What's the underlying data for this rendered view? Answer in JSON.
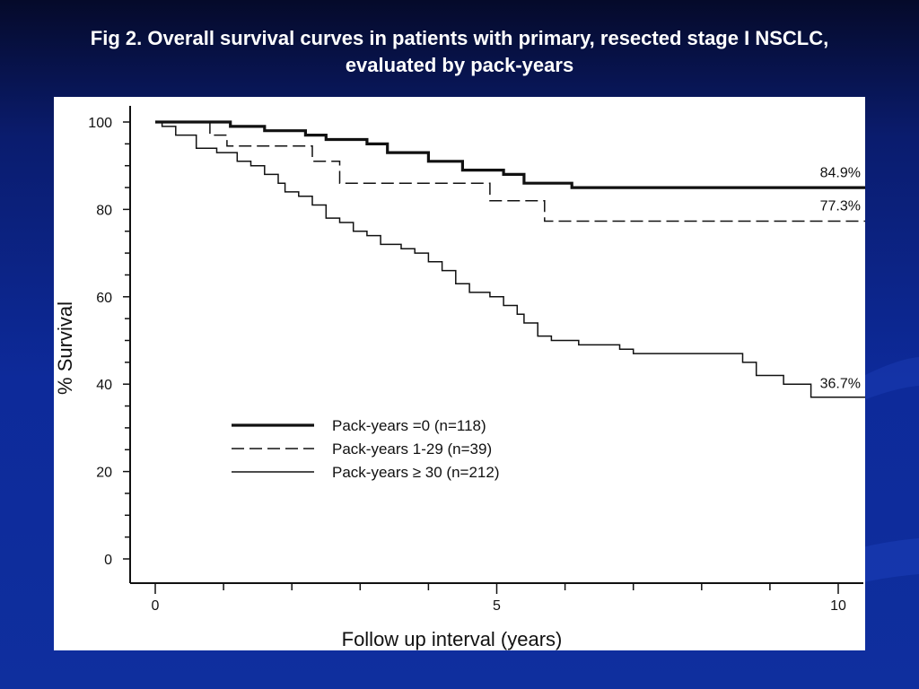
{
  "slide": {
    "title_line1": "Fig 2. Overall survival curves in patients with primary, resected stage I NSCLC,",
    "title_line2": "evaluated by pack-years",
    "background_color": "#0d2a9a",
    "title_color": "#ffffff"
  },
  "chart_data": {
    "type": "line",
    "step": true,
    "xlabel": "Follow up interval (years)",
    "ylabel": "% Survival",
    "xlim": [
      0,
      10.5
    ],
    "ylim": [
      -3,
      105
    ],
    "x_ticks": [
      0,
      5,
      10
    ],
    "x_tick_labels": [
      "0",
      "5",
      "10"
    ],
    "y_ticks": [
      0,
      20,
      40,
      60,
      80,
      100
    ],
    "y_tick_labels": [
      "0",
      "20",
      "40",
      "60",
      "80",
      "100"
    ],
    "grid": false,
    "legend_position": "lower-left",
    "series": [
      {
        "name": "Pack-years =0 (n=118)",
        "style": "thick-solid",
        "end_label": "84.9%",
        "points": [
          [
            0,
            100
          ],
          [
            1.1,
            99
          ],
          [
            1.6,
            98
          ],
          [
            2.2,
            97
          ],
          [
            2.5,
            96
          ],
          [
            3.1,
            95
          ],
          [
            3.4,
            93
          ],
          [
            4.0,
            91
          ],
          [
            4.5,
            89
          ],
          [
            5.1,
            88
          ],
          [
            5.4,
            86
          ],
          [
            6.1,
            85
          ],
          [
            10.5,
            84.9
          ]
        ]
      },
      {
        "name": "Pack-years  1-29 (n=39)",
        "style": "dashed",
        "end_label": "77.3%",
        "points": [
          [
            0,
            100
          ],
          [
            0.8,
            97
          ],
          [
            1.05,
            94.5
          ],
          [
            2.3,
            91
          ],
          [
            2.7,
            86
          ],
          [
            4.9,
            82
          ],
          [
            5.7,
            77.3
          ],
          [
            10.5,
            77.3
          ]
        ]
      },
      {
        "name": "Pack-years ≥ 30 (n=212)",
        "style": "thin-solid",
        "end_label": "36.7%",
        "points": [
          [
            0,
            100
          ],
          [
            0.1,
            99
          ],
          [
            0.3,
            97
          ],
          [
            0.6,
            94
          ],
          [
            0.9,
            93
          ],
          [
            1.2,
            91
          ],
          [
            1.4,
            90
          ],
          [
            1.6,
            88
          ],
          [
            1.8,
            86
          ],
          [
            1.9,
            84
          ],
          [
            2.1,
            83
          ],
          [
            2.3,
            81
          ],
          [
            2.5,
            78
          ],
          [
            2.7,
            77
          ],
          [
            2.9,
            75
          ],
          [
            3.1,
            74
          ],
          [
            3.3,
            72
          ],
          [
            3.6,
            71
          ],
          [
            3.8,
            70
          ],
          [
            4.0,
            68
          ],
          [
            4.2,
            66
          ],
          [
            4.4,
            63
          ],
          [
            4.6,
            61
          ],
          [
            4.9,
            60
          ],
          [
            5.1,
            58
          ],
          [
            5.3,
            56
          ],
          [
            5.4,
            54
          ],
          [
            5.6,
            51
          ],
          [
            5.8,
            50
          ],
          [
            6.2,
            49
          ],
          [
            6.8,
            48
          ],
          [
            7.0,
            47
          ],
          [
            8.6,
            45
          ],
          [
            8.8,
            42
          ],
          [
            9.2,
            40
          ],
          [
            9.6,
            37
          ],
          [
            10.5,
            36.7
          ]
        ]
      }
    ]
  }
}
